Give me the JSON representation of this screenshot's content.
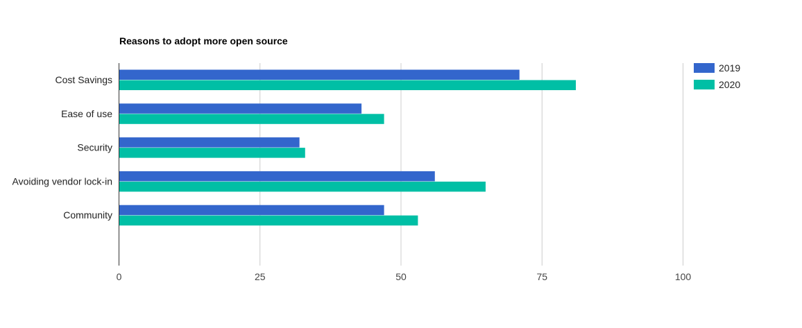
{
  "chart_data": {
    "type": "bar",
    "orientation": "horizontal",
    "title": "Reasons to adopt more open source",
    "xlabel": "",
    "ylabel": "",
    "categories": [
      "Cost Savings",
      "Ease of use",
      "Security",
      "Avoiding vendor lock-in",
      "Community"
    ],
    "series": [
      {
        "name": "2019",
        "color": "#3366cc",
        "values": [
          71,
          43,
          32,
          56,
          47
        ]
      },
      {
        "name": "2020",
        "color": "#00bfa5",
        "values": [
          81,
          47,
          33,
          65,
          53
        ]
      }
    ],
    "xlim": [
      0,
      100
    ],
    "xticks": [
      "0",
      "25",
      "50",
      "75",
      "100"
    ],
    "grid": true,
    "legend_position": "top-right"
  }
}
